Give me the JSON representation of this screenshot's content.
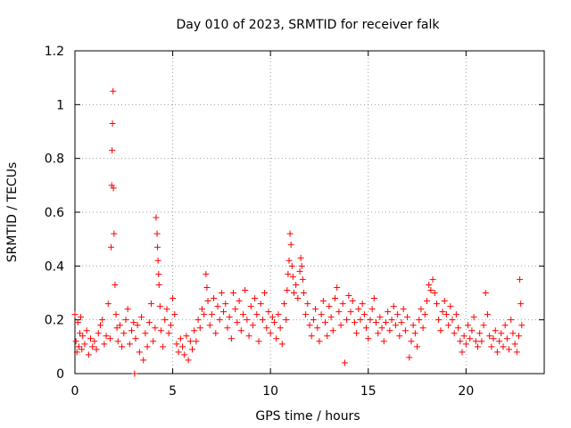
{
  "chart_data": {
    "type": "scatter",
    "title": "Day 010 of 2023, SRMTID for receiver falk",
    "xlabel": "GPS time / hours",
    "ylabel": "SRMTID / TECUs",
    "xlim": [
      0,
      24
    ],
    "ylim": [
      0,
      1.2
    ],
    "xticks": [
      0,
      5,
      10,
      15,
      20
    ],
    "xtick_labels": [
      "0",
      "5",
      "10",
      "15",
      "20"
    ],
    "yticks": [
      0,
      0.2,
      0.4,
      0.6,
      0.8,
      1.0,
      1.2
    ],
    "ytick_labels": [
      "0",
      "0.2",
      "0.4",
      "0.6",
      "0.8",
      "1",
      "1.2"
    ],
    "grid": true,
    "marker": "+",
    "color": "#ff0000",
    "series": [
      {
        "name": "SRMTID",
        "x": [
          0.0,
          0.05,
          0.1,
          0.15,
          0.2,
          0.25,
          0.3,
          0.35,
          0.4,
          0.5,
          0.6,
          0.7,
          0.8,
          0.9,
          1.0,
          1.1,
          1.2,
          1.3,
          1.4,
          1.5,
          1.6,
          1.7,
          1.8,
          1.85,
          1.88,
          1.9,
          1.92,
          1.95,
          1.97,
          2.0,
          2.05,
          2.1,
          2.15,
          2.2,
          2.3,
          2.4,
          2.5,
          2.6,
          2.7,
          2.8,
          2.9,
          3.0,
          3.05,
          3.1,
          3.2,
          3.3,
          3.4,
          3.5,
          3.6,
          3.7,
          3.8,
          3.9,
          4.0,
          4.1,
          4.15,
          4.2,
          4.22,
          4.25,
          4.28,
          4.3,
          4.35,
          4.4,
          4.5,
          4.6,
          4.7,
          4.8,
          4.9,
          5.0,
          5.1,
          5.2,
          5.3,
          5.4,
          5.5,
          5.6,
          5.7,
          5.8,
          5.9,
          6.0,
          6.1,
          6.2,
          6.3,
          6.4,
          6.5,
          6.6,
          6.7,
          6.75,
          6.8,
          6.9,
          7.0,
          7.1,
          7.2,
          7.3,
          7.4,
          7.5,
          7.6,
          7.7,
          7.8,
          7.9,
          8.0,
          8.1,
          8.2,
          8.3,
          8.4,
          8.5,
          8.6,
          8.7,
          8.8,
          8.9,
          9.0,
          9.1,
          9.2,
          9.3,
          9.4,
          9.5,
          9.6,
          9.7,
          9.8,
          9.9,
          10.0,
          10.1,
          10.2,
          10.3,
          10.4,
          10.5,
          10.6,
          10.7,
          10.8,
          10.85,
          10.9,
          10.95,
          11.0,
          11.05,
          11.1,
          11.15,
          11.2,
          11.3,
          11.4,
          11.5,
          11.55,
          11.6,
          11.65,
          11.7,
          11.8,
          11.9,
          12.0,
          12.1,
          12.2,
          12.3,
          12.4,
          12.5,
          12.6,
          12.7,
          12.8,
          12.9,
          13.0,
          13.1,
          13.2,
          13.3,
          13.4,
          13.5,
          13.6,
          13.7,
          13.8,
          13.9,
          14.0,
          14.1,
          14.2,
          14.3,
          14.4,
          14.5,
          14.6,
          14.7,
          14.8,
          14.9,
          15.0,
          15.1,
          15.2,
          15.3,
          15.4,
          15.5,
          15.6,
          15.7,
          15.8,
          15.9,
          16.0,
          16.1,
          16.2,
          16.3,
          16.4,
          16.5,
          16.6,
          16.7,
          16.8,
          16.9,
          17.0,
          17.1,
          17.2,
          17.3,
          17.4,
          17.5,
          17.6,
          17.7,
          17.8,
          17.9,
          18.0,
          18.1,
          18.2,
          18.3,
          18.4,
          18.5,
          18.6,
          18.7,
          18.8,
          18.9,
          19.0,
          19.1,
          19.2,
          19.3,
          19.4,
          19.5,
          19.6,
          19.7,
          19.8,
          19.9,
          20.0,
          20.1,
          20.2,
          20.3,
          20.4,
          20.5,
          20.6,
          20.7,
          20.8,
          20.9,
          21.0,
          21.1,
          21.2,
          21.3,
          21.4,
          21.5,
          21.6,
          21.7,
          21.8,
          21.9,
          22.0,
          22.1,
          22.2,
          22.3,
          22.4,
          22.5,
          22.6,
          22.7,
          22.75,
          22.8,
          22.85
        ],
        "y": [
          0.22,
          0.12,
          0.08,
          0.19,
          0.1,
          0.15,
          0.21,
          0.09,
          0.14,
          0.11,
          0.16,
          0.07,
          0.13,
          0.1,
          0.12,
          0.09,
          0.15,
          0.18,
          0.2,
          0.11,
          0.14,
          0.26,
          0.13,
          0.47,
          0.7,
          0.83,
          0.93,
          1.05,
          0.69,
          0.52,
          0.33,
          0.22,
          0.17,
          0.12,
          0.18,
          0.1,
          0.15,
          0.2,
          0.24,
          0.11,
          0.16,
          0.19,
          0.0,
          0.13,
          0.18,
          0.08,
          0.21,
          0.05,
          0.15,
          0.1,
          0.19,
          0.26,
          0.12,
          0.17,
          0.58,
          0.52,
          0.47,
          0.42,
          0.37,
          0.33,
          0.25,
          0.16,
          0.1,
          0.2,
          0.24,
          0.15,
          0.18,
          0.28,
          0.22,
          0.11,
          0.08,
          0.13,
          0.1,
          0.07,
          0.14,
          0.05,
          0.12,
          0.09,
          0.16,
          0.12,
          0.2,
          0.17,
          0.24,
          0.22,
          0.37,
          0.32,
          0.27,
          0.18,
          0.22,
          0.28,
          0.15,
          0.25,
          0.2,
          0.3,
          0.23,
          0.26,
          0.17,
          0.21,
          0.13,
          0.3,
          0.24,
          0.19,
          0.27,
          0.16,
          0.22,
          0.31,
          0.2,
          0.14,
          0.25,
          0.18,
          0.28,
          0.22,
          0.12,
          0.26,
          0.2,
          0.3,
          0.17,
          0.23,
          0.15,
          0.21,
          0.19,
          0.13,
          0.22,
          0.17,
          0.11,
          0.26,
          0.2,
          0.31,
          0.37,
          0.42,
          0.52,
          0.48,
          0.4,
          0.36,
          0.3,
          0.33,
          0.28,
          0.38,
          0.43,
          0.4,
          0.35,
          0.3,
          0.22,
          0.26,
          0.18,
          0.14,
          0.2,
          0.24,
          0.17,
          0.12,
          0.22,
          0.27,
          0.19,
          0.14,
          0.25,
          0.21,
          0.16,
          0.28,
          0.32,
          0.23,
          0.18,
          0.26,
          0.04,
          0.2,
          0.29,
          0.23,
          0.27,
          0.19,
          0.15,
          0.24,
          0.2,
          0.26,
          0.22,
          0.17,
          0.13,
          0.2,
          0.24,
          0.28,
          0.19,
          0.15,
          0.21,
          0.17,
          0.12,
          0.19,
          0.23,
          0.16,
          0.2,
          0.25,
          0.18,
          0.22,
          0.14,
          0.19,
          0.24,
          0.16,
          0.21,
          0.06,
          0.12,
          0.18,
          0.15,
          0.1,
          0.2,
          0.24,
          0.17,
          0.22,
          0.27,
          0.33,
          0.31,
          0.35,
          0.3,
          0.26,
          0.2,
          0.16,
          0.23,
          0.27,
          0.22,
          0.18,
          0.25,
          0.2,
          0.15,
          0.22,
          0.17,
          0.12,
          0.08,
          0.14,
          0.11,
          0.18,
          0.13,
          0.16,
          0.21,
          0.12,
          0.1,
          0.15,
          0.12,
          0.18,
          0.3,
          0.22,
          0.14,
          0.1,
          0.13,
          0.16,
          0.08,
          0.12,
          0.15,
          0.1,
          0.18,
          0.13,
          0.09,
          0.2,
          0.15,
          0.11,
          0.08,
          0.14,
          0.35,
          0.26,
          0.18
        ]
      }
    ]
  }
}
